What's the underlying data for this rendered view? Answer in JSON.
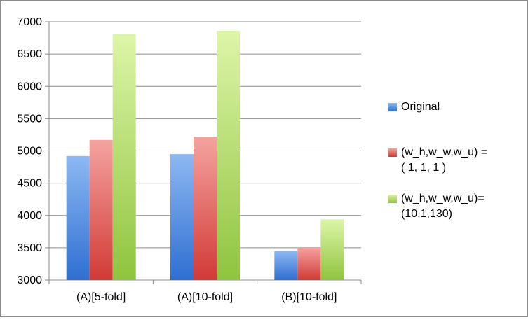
{
  "chart_data": {
    "type": "bar",
    "title": "",
    "xlabel": "",
    "ylabel": "",
    "categories": [
      "(A)[5-fold]",
      "(A)[10-fold]",
      "(B)[10-fold]"
    ],
    "series": [
      {
        "name": "Original",
        "values": [
          4920,
          4950,
          3450
        ],
        "colors": [
          "#8db8f2",
          "#2f6fd1"
        ]
      },
      {
        "name": "(w_h,w_w,w_u) = ( 1, 1, 1 )",
        "name_lines": [
          "(w_h,w_w,w_u) =",
          "( 1, 1, 1 )"
        ],
        "values": [
          5170,
          5220,
          3510
        ],
        "colors": [
          "#f4a3a0",
          "#d23a36"
        ]
      },
      {
        "name": "(w_h,w_w,w_u)= (10,1,130)",
        "name_lines": [
          "(w_h,w_w,w_u)=",
          "(10,1,130)"
        ],
        "values": [
          6810,
          6860,
          3940
        ],
        "colors": [
          "#ddf5a8",
          "#8fc43e"
        ]
      }
    ],
    "ylim": [
      3000,
      7000
    ],
    "yticks": [
      3000,
      3500,
      4000,
      4500,
      5000,
      5500,
      6000,
      6500,
      7000
    ],
    "grid": true,
    "legend_position": "right"
  }
}
